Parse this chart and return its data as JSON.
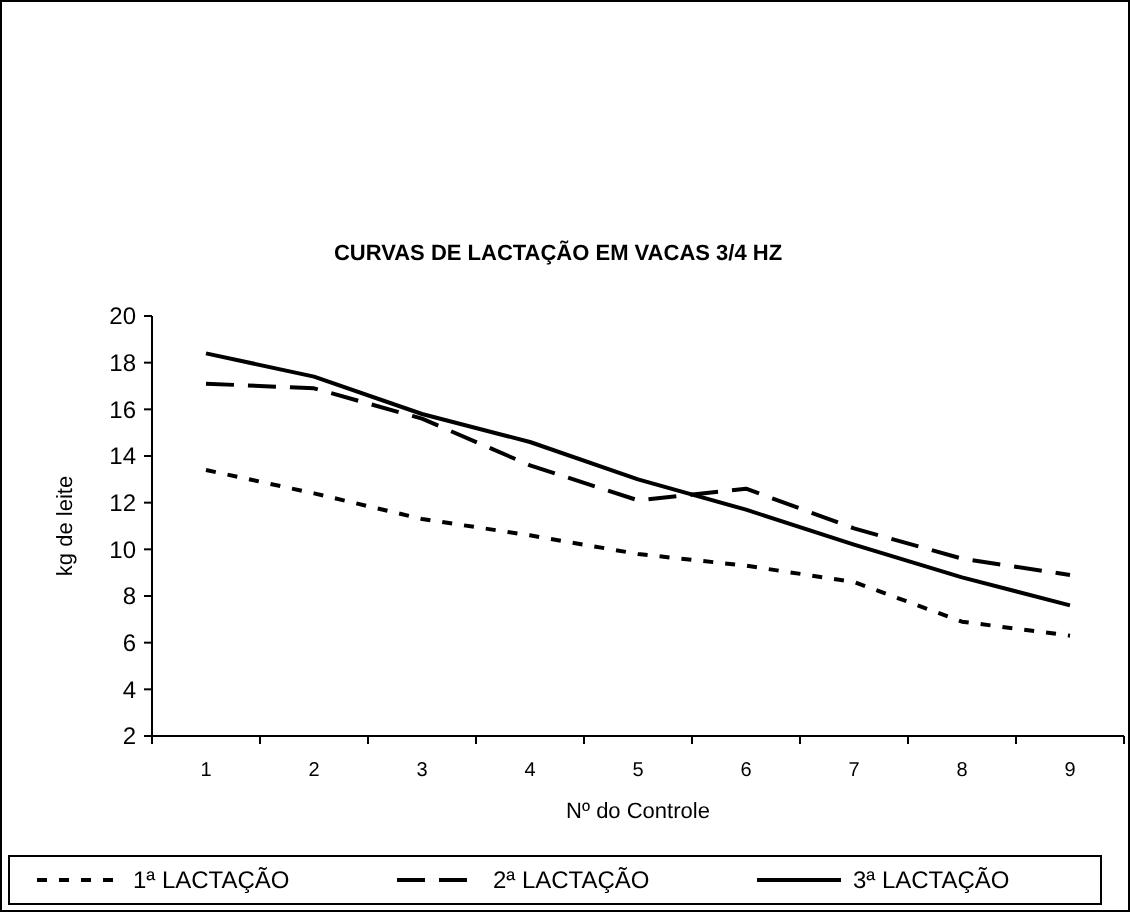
{
  "chart_data": {
    "type": "line",
    "title": "CURVAS DE LACTAÇÃO EM VACAS 3/4 HZ",
    "xlabel": "Nº do Controle",
    "ylabel": "kg de leite",
    "categories": [
      "1",
      "2",
      "3",
      "4",
      "5",
      "6",
      "7",
      "8",
      "9"
    ],
    "series": [
      {
        "name": "1ª LACTAÇÃO",
        "color": "#000000",
        "line_style": "dotted",
        "values": [
          13.4,
          12.4,
          11.3,
          10.6,
          9.8,
          9.3,
          8.6,
          6.9,
          6.3
        ]
      },
      {
        "name": "2ª LACTAÇÃO",
        "color": "#000000",
        "line_style": "dashed",
        "values": [
          17.1,
          16.9,
          15.6,
          13.6,
          12.1,
          12.6,
          10.9,
          9.6,
          8.9
        ]
      },
      {
        "name": "3ª LACTAÇÃO",
        "color": "#000000",
        "line_style": "solid",
        "values": [
          18.4,
          17.4,
          15.8,
          14.6,
          13.0,
          11.7,
          10.2,
          8.8,
          7.6
        ]
      }
    ],
    "ylim": [
      2,
      20
    ],
    "yticks": [
      2,
      4,
      6,
      8,
      10,
      12,
      14,
      16,
      18,
      20
    ],
    "grid": false,
    "legend": "bottom",
    "marker": "none"
  }
}
